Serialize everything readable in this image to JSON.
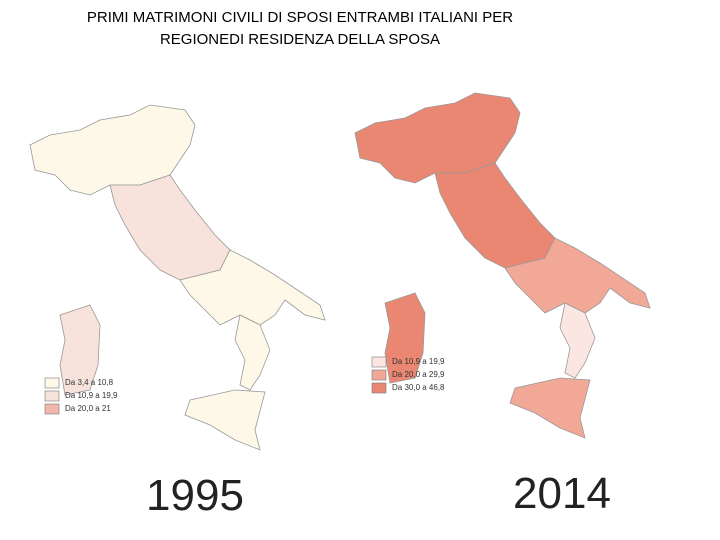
{
  "title_lines": [
    "PRIMI MATRIMONI CIVILI DI SPOSI ENTRAMBI ITALIANI PER",
    "REGIONEDI RESIDENZA DELLA SPOSA"
  ],
  "maps": [
    {
      "year": "1995",
      "legend": [
        {
          "label": "Da 3,4 a 10,8",
          "color": "#fdf8e8"
        },
        {
          "label": "Da 10,9 a 19,9",
          "color": "#f8e2dc"
        },
        {
          "label": "Da 20,0 a 21",
          "color": "#f0b7aa"
        }
      ]
    },
    {
      "year": "2014",
      "legend": [
        {
          "label": "Da 10,9 a 19,9",
          "color": "#fbe6e1"
        },
        {
          "label": "Da 20,0 a 29,9",
          "color": "#f2a897"
        },
        {
          "label": "Da 30,0 a 46,8",
          "color": "#ea8772"
        }
      ]
    }
  ]
}
